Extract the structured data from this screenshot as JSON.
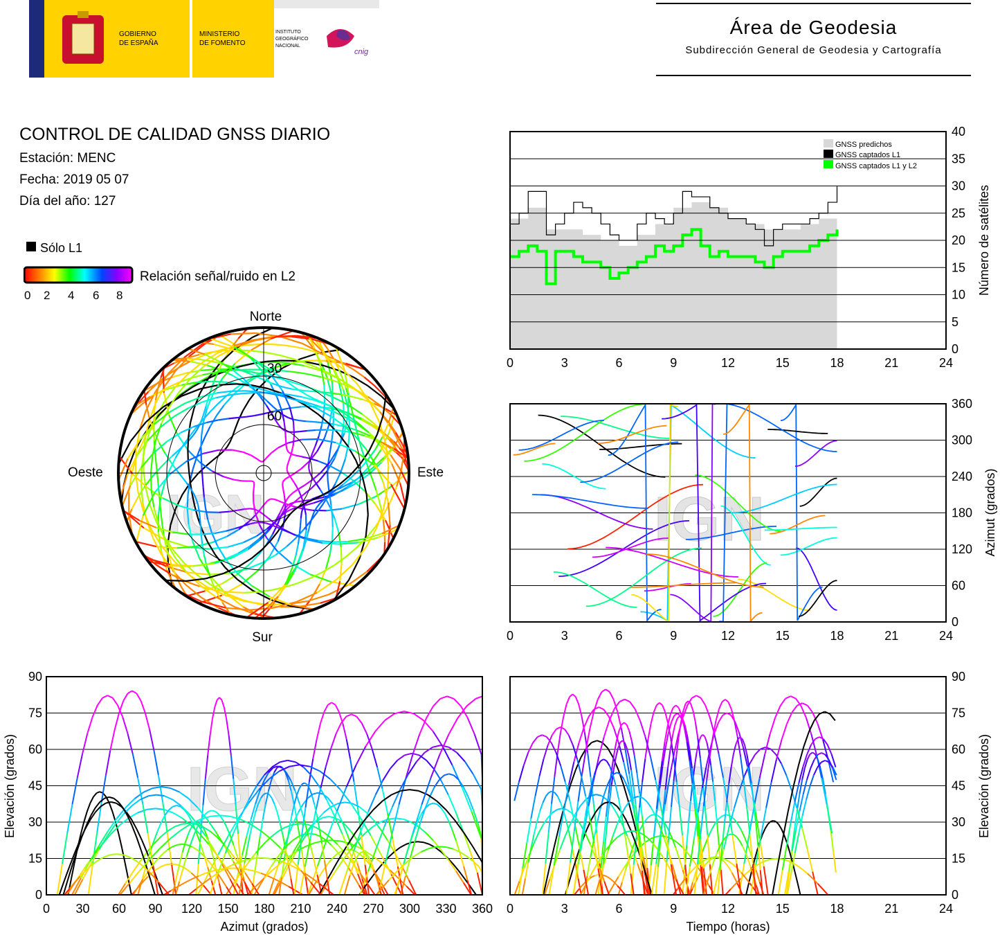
{
  "header": {
    "gov1": "GOBIERNO",
    "gov2": "DE ESPAÑA",
    "min1": "MINISTERIO",
    "min2": "DE FOMENTO",
    "ign1": "INSTITUTO",
    "ign2": "GEOGRÁFICO",
    "ign3": "NACIONAL",
    "cnig": "cnig",
    "area_title": "Área de Geodesia",
    "area_subtitle": "Subdirección General de Geodesia y Cartografía"
  },
  "info": {
    "title": "CONTROL DE CALIDAD GNSS DIARIO",
    "station": "Estación: MENC",
    "date": "Fecha: 2019 05 07",
    "doy": "Día del año: 127"
  },
  "legend": {
    "l1_only": "Sólo L1",
    "snr_label": "Relación señal/ruido en L2",
    "ticks": [
      "0",
      "2",
      "4",
      "6",
      "8"
    ]
  },
  "watermark": "IGN",
  "colors": {
    "predicted": "#d8d8d8",
    "l1": "#000000",
    "l1l2": "#00ff00"
  },
  "chart_data": [
    {
      "type": "area",
      "x_range": [
        0,
        24
      ],
      "ylim": [
        0,
        40
      ],
      "xticks": [
        "0",
        "3",
        "6",
        "9",
        "12",
        "15",
        "18",
        "21",
        "24"
      ],
      "yticks": [
        "0",
        "5",
        "10",
        "15",
        "20",
        "25",
        "30",
        "35",
        "40"
      ],
      "ylabel": "Número de satélites",
      "grid": true,
      "legend_position": "top-right",
      "series": [
        {
          "name": "GNSS predichos",
          "x": [
            0,
            1,
            2,
            3,
            4,
            5,
            6,
            7,
            8,
            9,
            10,
            11,
            12,
            13,
            14,
            15,
            16,
            17,
            18
          ],
          "values": [
            24,
            26,
            22,
            22,
            21,
            20,
            19,
            21,
            23,
            26,
            27,
            26,
            24,
            23,
            22,
            22,
            23,
            24,
            25
          ]
        },
        {
          "name": "GNSS captados L1",
          "x": [
            0,
            0.5,
            1,
            1.5,
            2,
            2.5,
            3,
            3.5,
            4,
            4.5,
            5,
            5.5,
            6,
            6.5,
            7,
            7.5,
            8,
            8.5,
            9,
            9.5,
            10,
            10.5,
            11,
            11.5,
            12,
            12.5,
            13,
            13.5,
            14,
            14.5,
            15,
            15.5,
            16,
            16.5,
            17,
            17.5,
            18
          ],
          "values": [
            23,
            25,
            29,
            29,
            21,
            23,
            25,
            27,
            26,
            25,
            23,
            21,
            20,
            20,
            23,
            25,
            24,
            23,
            25,
            29,
            28,
            28,
            26,
            25,
            24,
            24,
            23,
            22,
            19,
            22,
            23,
            23,
            23,
            24,
            25,
            27,
            30
          ]
        },
        {
          "name": "GNSS captados L1 y L2",
          "x": [
            0,
            0.5,
            1,
            1.5,
            2,
            2.5,
            3,
            3.5,
            4,
            4.5,
            5,
            5.5,
            6,
            6.5,
            7,
            7.5,
            8,
            8.5,
            9,
            9.5,
            10,
            10.5,
            11,
            11.5,
            12,
            12.5,
            13,
            13.5,
            14,
            14.5,
            15,
            15.5,
            16,
            16.5,
            17,
            17.5,
            18
          ],
          "values": [
            17,
            18,
            19,
            18,
            12,
            18,
            18,
            17,
            16,
            16,
            15,
            13,
            14,
            15,
            16,
            17,
            19,
            18,
            19,
            21,
            22,
            19,
            17,
            18,
            17,
            17,
            17,
            16,
            15,
            17,
            18,
            18,
            18,
            19,
            20,
            21,
            22
          ]
        }
      ]
    },
    {
      "type": "scatter",
      "x_range": [
        0,
        24
      ],
      "ylim": [
        0,
        360
      ],
      "xticks": [
        "0",
        "3",
        "6",
        "9",
        "12",
        "15",
        "18",
        "21",
        "24"
      ],
      "yticks": [
        "0",
        "60",
        "120",
        "180",
        "240",
        "300",
        "360"
      ],
      "ylabel": "Azimut (grados)",
      "grid": true
    },
    {
      "type": "scatter",
      "projection": "polar",
      "directions": [
        "Norte",
        "Sur",
        "Este",
        "Oeste"
      ],
      "rings": [
        "30",
        "60"
      ]
    },
    {
      "type": "scatter",
      "x_range": [
        0,
        360
      ],
      "ylim": [
        0,
        90
      ],
      "xticks": [
        "0",
        "30",
        "60",
        "90",
        "120",
        "150",
        "180",
        "210",
        "240",
        "270",
        "300",
        "330",
        "360"
      ],
      "yticks": [
        "0",
        "15",
        "30",
        "45",
        "60",
        "75",
        "90"
      ],
      "xlabel": "Azimut (grados)",
      "ylabel": "Elevación (grados)",
      "grid": true
    },
    {
      "type": "scatter",
      "x_range": [
        0,
        24
      ],
      "ylim": [
        0,
        90
      ],
      "xticks": [
        "0",
        "3",
        "6",
        "9",
        "12",
        "15",
        "18",
        "21",
        "24"
      ],
      "yticks": [
        "0",
        "15",
        "30",
        "45",
        "60",
        "75",
        "90"
      ],
      "xlabel": "Tiempo (horas)",
      "ylabel": "Elevación (grados)",
      "grid": true
    }
  ]
}
